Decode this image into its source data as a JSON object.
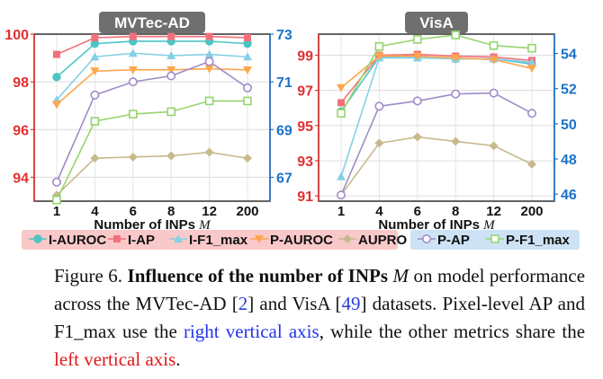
{
  "chart_data": [
    {
      "type": "line",
      "title": "MVTec-AD",
      "xlabel": "Number of INPs M",
      "categories": [
        "1",
        "4",
        "6",
        "8",
        "12",
        "200"
      ],
      "left_axis": {
        "range": [
          93,
          100
        ],
        "ticks": [
          "94",
          "96",
          "98",
          "100"
        ],
        "color": "#e03030"
      },
      "right_axis": {
        "range": [
          66,
          73
        ],
        "ticks": [
          "67",
          "69",
          "71",
          "73"
        ],
        "color": "#1a73c9"
      },
      "series": [
        {
          "name": "I-AUROC",
          "axis": "left",
          "values": [
            98.2,
            99.6,
            99.7,
            99.7,
            99.7,
            99.6
          ]
        },
        {
          "name": "I-AP",
          "axis": "left",
          "values": [
            99.15,
            99.85,
            99.9,
            99.9,
            99.9,
            99.85
          ]
        },
        {
          "name": "I-F1_max",
          "axis": "left",
          "values": [
            97.25,
            99.05,
            99.2,
            99.1,
            99.15,
            99.05
          ]
        },
        {
          "name": "P-AUROC",
          "axis": "left",
          "values": [
            97.05,
            98.45,
            98.5,
            98.5,
            98.55,
            98.5
          ]
        },
        {
          "name": "AUPRO",
          "axis": "left",
          "values": [
            93.25,
            94.8,
            94.85,
            94.9,
            95.05,
            94.8
          ]
        },
        {
          "name": "P-AP",
          "axis": "right",
          "values": [
            66.8,
            70.45,
            71.0,
            71.25,
            71.85,
            70.75
          ]
        },
        {
          "name": "P-F1_max",
          "axis": "right",
          "values": [
            66.05,
            69.35,
            69.65,
            69.75,
            70.2,
            70.2
          ]
        }
      ]
    },
    {
      "type": "line",
      "title": "VisA",
      "xlabel": "Number of INPs M",
      "categories": [
        "1",
        "4",
        "6",
        "8",
        "12",
        "200"
      ],
      "left_axis": {
        "range": [
          90.7,
          100.2
        ],
        "ticks": [
          "91",
          "93",
          "95",
          "97",
          "99"
        ],
        "color": "#e03030"
      },
      "right_axis": {
        "range": [
          45.6,
          55.1
        ],
        "ticks": [
          "46",
          "48",
          "50",
          "52",
          "54"
        ],
        "color": "#1a73c9"
      },
      "series": [
        {
          "name": "I-AUROC",
          "axis": "left",
          "values": [
            95.8,
            98.9,
            98.95,
            98.8,
            98.8,
            98.5
          ]
        },
        {
          "name": "I-AP",
          "axis": "left",
          "values": [
            96.3,
            99.0,
            99.05,
            98.95,
            98.9,
            98.7
          ]
        },
        {
          "name": "I-F1_max",
          "axis": "left",
          "values": [
            92.1,
            98.85,
            98.85,
            98.8,
            98.8,
            98.6
          ]
        },
        {
          "name": "P-AUROC",
          "axis": "left",
          "values": [
            97.15,
            98.95,
            98.95,
            98.85,
            98.75,
            98.25
          ]
        },
        {
          "name": "AUPRO",
          "axis": "left",
          "values": [
            91.05,
            94.0,
            94.35,
            94.1,
            93.85,
            92.8
          ]
        },
        {
          "name": "P-AP",
          "axis": "right",
          "values": [
            45.95,
            51.0,
            51.3,
            51.7,
            51.75,
            50.6
          ]
        },
        {
          "name": "P-F1_max",
          "axis": "right",
          "values": [
            50.6,
            54.4,
            54.8,
            55.05,
            54.45,
            54.3
          ]
        }
      ]
    }
  ],
  "legend": {
    "left_group": [
      {
        "name": "I-AUROC",
        "color": "#4ec4c4",
        "marker": "circle"
      },
      {
        "name": "I-AP",
        "color": "#f0717b",
        "marker": "square"
      },
      {
        "name": "I-F1_max",
        "color": "#86cfe6",
        "marker": "triangle-up"
      },
      {
        "name": "P-AUROC",
        "color": "#ffa64d",
        "marker": "triangle-down"
      },
      {
        "name": "AUPRO",
        "color": "#c8b98c",
        "marker": "diamond"
      }
    ],
    "right_group": [
      {
        "name": "P-AP",
        "color": "#a08cc8",
        "marker": "circle-open"
      },
      {
        "name": "P-F1_max",
        "color": "#96d46e",
        "marker": "square-open"
      }
    ],
    "left_bg": "#f9c8c8",
    "right_bg": "#cde3f5"
  },
  "caption": {
    "label": "Figure 6.",
    "bold_title_pre": "Influence of the number of INPs",
    "math_symbol": "M",
    "text_1": "on model performance across the MVTec-AD [",
    "cite_1": "2",
    "text_2": "] and VisA [",
    "cite_2": "49",
    "text_3": "] datasets. Pixel-level AP and F1_max use the",
    "blue_text": "right vertical axis",
    "text_4": ", while the other metrics share the",
    "red_text": "left vertical axis",
    "text_5": "."
  }
}
